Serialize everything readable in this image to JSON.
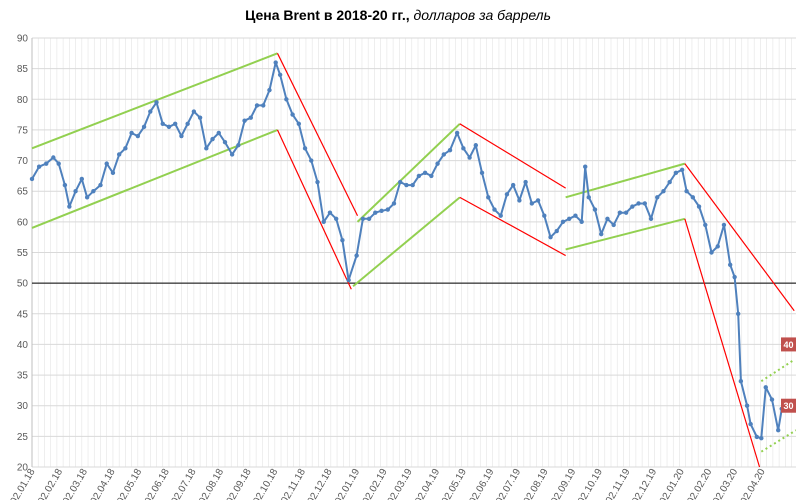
{
  "chart_data": {
    "type": "line",
    "title_main": "Цена Brent в 2018-20 гг.,",
    "title_sub": " долларов за баррель",
    "xlabel": "",
    "ylabel": "",
    "ylim": [
      20,
      90
    ],
    "yticks": [
      20,
      25,
      30,
      35,
      40,
      45,
      50,
      55,
      60,
      65,
      70,
      75,
      80,
      85,
      90
    ],
    "x_range": [
      "2018-01-02",
      "2020-05-10"
    ],
    "xtick_labels": [
      "02.01.18",
      "02.02.18",
      "02.03.18",
      "02.04.18",
      "02.05.18",
      "02.06.18",
      "02.07.18",
      "02.08.18",
      "02.09.18",
      "02.10.18",
      "02.11.18",
      "02.12.18",
      "02.01.19",
      "02.02.19",
      "02.03.19",
      "02.04.19",
      "02.05.19",
      "02.06.19",
      "02.07.19",
      "02.08.19",
      "02.09.19",
      "02.10.19",
      "02.11.19",
      "02.12.19",
      "02.01.20",
      "02.02.20",
      "02.03.20",
      "02.04.20"
    ],
    "grid": true,
    "reference_line": 50,
    "colors": {
      "series": "#4f81bd",
      "uptrend": "#92d050",
      "downtrend": "#ff0000",
      "reference": "#000000",
      "label_box": "#c0504d"
    },
    "series": [
      {
        "values": [
          [
            "2018-01-02",
            67
          ],
          [
            "2018-01-10",
            69
          ],
          [
            "2018-01-18",
            69.5
          ],
          [
            "2018-01-26",
            70.5
          ],
          [
            "2018-02-01",
            69.5
          ],
          [
            "2018-02-08",
            66
          ],
          [
            "2018-02-13",
            62.5
          ],
          [
            "2018-02-20",
            65
          ],
          [
            "2018-02-27",
            67
          ],
          [
            "2018-03-05",
            64
          ],
          [
            "2018-03-12",
            65
          ],
          [
            "2018-03-20",
            66
          ],
          [
            "2018-03-27",
            69.5
          ],
          [
            "2018-04-03",
            68
          ],
          [
            "2018-04-10",
            71
          ],
          [
            "2018-04-17",
            72
          ],
          [
            "2018-04-24",
            74.5
          ],
          [
            "2018-05-01",
            74
          ],
          [
            "2018-05-08",
            75.5
          ],
          [
            "2018-05-15",
            78
          ],
          [
            "2018-05-22",
            79.5
          ],
          [
            "2018-05-29",
            76
          ],
          [
            "2018-06-05",
            75.5
          ],
          [
            "2018-06-12",
            76
          ],
          [
            "2018-06-19",
            74
          ],
          [
            "2018-06-26",
            76
          ],
          [
            "2018-07-03",
            78
          ],
          [
            "2018-07-10",
            77
          ],
          [
            "2018-07-17",
            72
          ],
          [
            "2018-07-24",
            73.5
          ],
          [
            "2018-07-31",
            74.5
          ],
          [
            "2018-08-07",
            73
          ],
          [
            "2018-08-15",
            71
          ],
          [
            "2018-08-22",
            72.5
          ],
          [
            "2018-08-29",
            76.5
          ],
          [
            "2018-09-05",
            77
          ],
          [
            "2018-09-12",
            79
          ],
          [
            "2018-09-19",
            79
          ],
          [
            "2018-09-26",
            81.5
          ],
          [
            "2018-10-03",
            86
          ],
          [
            "2018-10-08",
            84
          ],
          [
            "2018-10-15",
            80
          ],
          [
            "2018-10-22",
            77.5
          ],
          [
            "2018-10-29",
            76
          ],
          [
            "2018-11-05",
            72
          ],
          [
            "2018-11-12",
            70
          ],
          [
            "2018-11-19",
            66.5
          ],
          [
            "2018-11-26",
            60
          ],
          [
            "2018-12-03",
            61.5
          ],
          [
            "2018-12-10",
            60.5
          ],
          [
            "2018-12-17",
            57
          ],
          [
            "2018-12-24",
            50.5
          ],
          [
            "2019-01-02",
            54.5
          ],
          [
            "2019-01-09",
            60.5
          ],
          [
            "2019-01-16",
            60.5
          ],
          [
            "2019-01-23",
            61.5
          ],
          [
            "2019-01-30",
            61.8
          ],
          [
            "2019-02-06",
            62
          ],
          [
            "2019-02-13",
            63
          ],
          [
            "2019-02-20",
            66.5
          ],
          [
            "2019-02-27",
            66
          ],
          [
            "2019-03-06",
            66
          ],
          [
            "2019-03-13",
            67.5
          ],
          [
            "2019-03-20",
            68
          ],
          [
            "2019-03-27",
            67.5
          ],
          [
            "2019-04-03",
            69.5
          ],
          [
            "2019-04-10",
            71
          ],
          [
            "2019-04-17",
            71.7
          ],
          [
            "2019-04-25",
            74.5
          ],
          [
            "2019-05-02",
            72
          ],
          [
            "2019-05-09",
            70.5
          ],
          [
            "2019-05-16",
            72.5
          ],
          [
            "2019-05-23",
            68
          ],
          [
            "2019-05-30",
            64
          ],
          [
            "2019-06-06",
            62
          ],
          [
            "2019-06-13",
            61
          ],
          [
            "2019-06-20",
            64.5
          ],
          [
            "2019-06-27",
            66
          ],
          [
            "2019-07-04",
            63.5
          ],
          [
            "2019-07-11",
            66.5
          ],
          [
            "2019-07-18",
            63
          ],
          [
            "2019-07-25",
            63.5
          ],
          [
            "2019-08-01",
            61
          ],
          [
            "2019-08-08",
            57.5
          ],
          [
            "2019-08-15",
            58.5
          ],
          [
            "2019-08-22",
            60
          ],
          [
            "2019-08-29",
            60.5
          ],
          [
            "2019-09-05",
            61
          ],
          [
            "2019-09-12",
            60
          ],
          [
            "2019-09-16",
            69
          ],
          [
            "2019-09-20",
            64
          ],
          [
            "2019-09-27",
            62
          ],
          [
            "2019-10-04",
            58
          ],
          [
            "2019-10-11",
            60.5
          ],
          [
            "2019-10-18",
            59.5
          ],
          [
            "2019-10-25",
            61.5
          ],
          [
            "2019-11-01",
            61.5
          ],
          [
            "2019-11-08",
            62.5
          ],
          [
            "2019-11-15",
            63
          ],
          [
            "2019-11-22",
            63
          ],
          [
            "2019-11-29",
            60.5
          ],
          [
            "2019-12-06",
            64
          ],
          [
            "2019-12-13",
            65
          ],
          [
            "2019-12-20",
            66.5
          ],
          [
            "2019-12-27",
            68
          ],
          [
            "2020-01-03",
            68.5
          ],
          [
            "2020-01-08",
            65
          ],
          [
            "2020-01-15",
            64
          ],
          [
            "2020-01-22",
            62.5
          ],
          [
            "2020-01-29",
            59.5
          ],
          [
            "2020-02-05",
            55
          ],
          [
            "2020-02-12",
            56
          ],
          [
            "2020-02-19",
            59.5
          ],
          [
            "2020-02-26",
            53
          ],
          [
            "2020-03-02",
            51
          ],
          [
            "2020-03-06",
            45
          ],
          [
            "2020-03-09",
            34
          ],
          [
            "2020-03-16",
            30
          ],
          [
            "2020-03-20",
            27
          ],
          [
            "2020-03-27",
            24.9
          ],
          [
            "2020-04-01",
            24.7
          ],
          [
            "2020-04-06",
            33
          ],
          [
            "2020-04-13",
            31
          ],
          [
            "2020-04-20",
            26
          ],
          [
            "2020-04-24",
            29.5
          ]
        ]
      }
    ],
    "trend_lines": [
      {
        "color": "uptrend",
        "points": [
          [
            "2018-01-02",
            72
          ],
          [
            "2018-10-05",
            87.5
          ]
        ]
      },
      {
        "color": "uptrend",
        "points": [
          [
            "2018-01-02",
            59
          ],
          [
            "2018-10-05",
            75
          ]
        ]
      },
      {
        "color": "downtrend",
        "points": [
          [
            "2018-10-05",
            87.5
          ],
          [
            "2019-01-03",
            61
          ]
        ]
      },
      {
        "color": "downtrend",
        "points": [
          [
            "2018-10-05",
            75
          ],
          [
            "2018-12-27",
            49
          ]
        ]
      },
      {
        "color": "uptrend",
        "points": [
          [
            "2019-01-03",
            60
          ],
          [
            "2019-04-28",
            76
          ]
        ]
      },
      {
        "color": "uptrend",
        "points": [
          [
            "2018-12-29",
            49.5
          ],
          [
            "2019-04-28",
            64
          ]
        ]
      },
      {
        "color": "downtrend",
        "points": [
          [
            "2019-04-28",
            76
          ],
          [
            "2019-08-25",
            65.5
          ]
        ]
      },
      {
        "color": "downtrend",
        "points": [
          [
            "2019-04-28",
            64
          ],
          [
            "2019-08-25",
            54.5
          ]
        ]
      },
      {
        "color": "uptrend",
        "points": [
          [
            "2019-08-25",
            64
          ],
          [
            "2020-01-06",
            69.5
          ]
        ]
      },
      {
        "color": "uptrend",
        "points": [
          [
            "2019-08-25",
            55.5
          ],
          [
            "2020-01-06",
            60.5
          ]
        ]
      },
      {
        "color": "downtrend",
        "points": [
          [
            "2020-01-06",
            69.5
          ],
          [
            "2020-05-08",
            45.5
          ]
        ]
      },
      {
        "color": "downtrend",
        "points": [
          [
            "2020-01-06",
            60.5
          ],
          [
            "2020-03-30",
            20
          ]
        ]
      }
    ],
    "dotted_lines": [
      {
        "color": "uptrend",
        "points": [
          [
            "2020-04-01",
            34
          ],
          [
            "2020-05-08",
            37.5
          ]
        ]
      },
      {
        "color": "uptrend",
        "points": [
          [
            "2020-04-01",
            22.5
          ],
          [
            "2020-05-10",
            26
          ]
        ]
      }
    ],
    "annotations": [
      {
        "text": "40",
        "x": "2020-05-10",
        "y": 40
      },
      {
        "text": "30",
        "x": "2020-05-10",
        "y": 30
      }
    ]
  }
}
